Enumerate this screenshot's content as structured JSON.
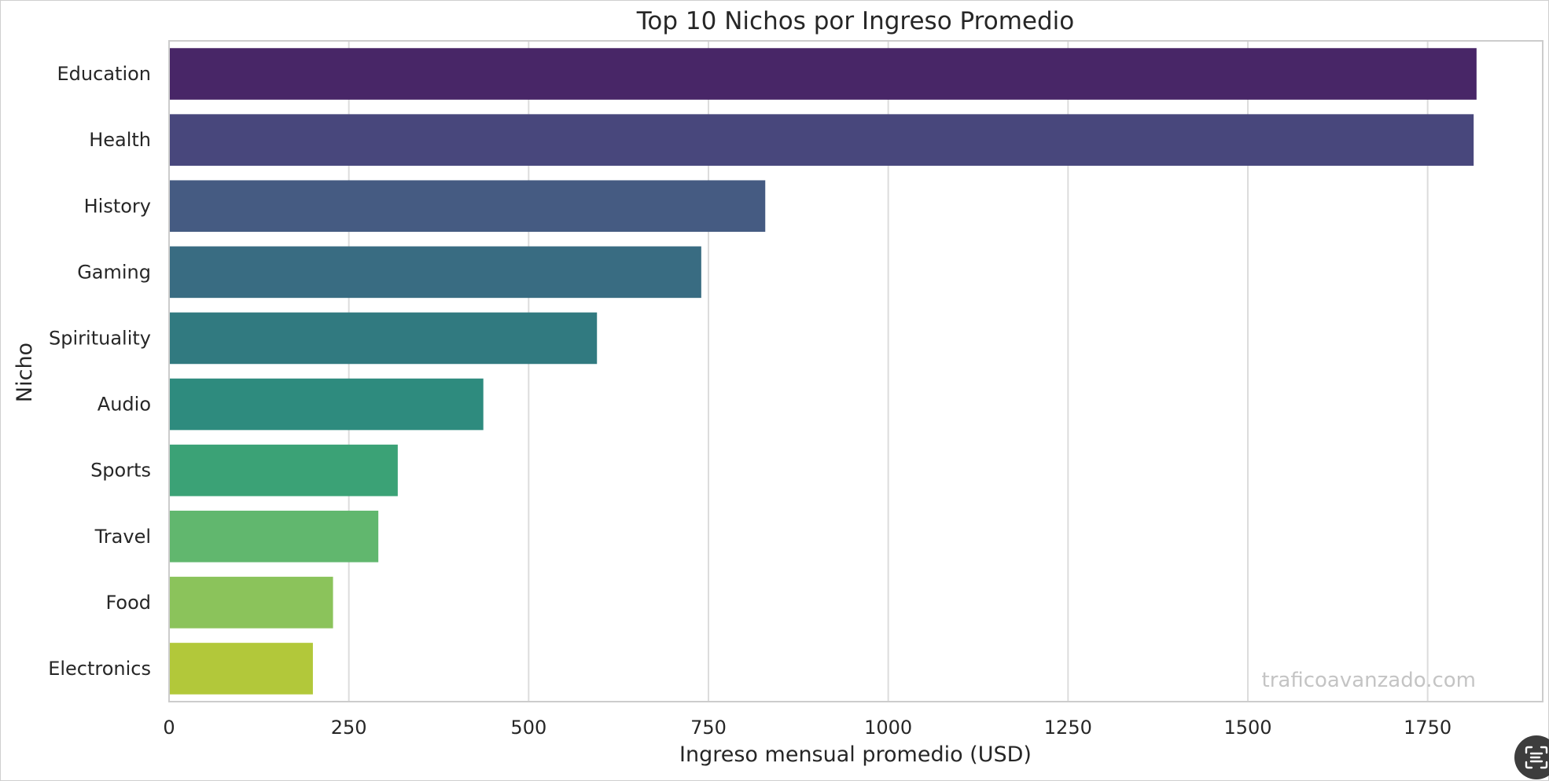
{
  "chart_data": {
    "type": "bar",
    "orientation": "horizontal",
    "title": "Top 10 Nichos por Ingreso Promedio",
    "xlabel": "Ingreso mensual promedio (USD)",
    "ylabel": "Nicho",
    "categories": [
      "Education",
      "Health",
      "History",
      "Gaming",
      "Spirituality",
      "Audio",
      "Sports",
      "Travel",
      "Food",
      "Electronics"
    ],
    "values": [
      1818,
      1814,
      829,
      740,
      595,
      437,
      318,
      291,
      228,
      200
    ],
    "colors": [
      "#482667",
      "#48477c",
      "#455b82",
      "#396c82",
      "#317a80",
      "#2e8b7e",
      "#3ba276",
      "#61b76e",
      "#8bc35b",
      "#b2c83a"
    ],
    "xlim": [
      0,
      1910
    ],
    "xticks": [
      0,
      250,
      500,
      750,
      1000,
      1250,
      1500,
      1750
    ],
    "xtick_labels": [
      "0",
      "250",
      "500",
      "750",
      "1000",
      "1250",
      "1500",
      "1750"
    ],
    "grid": "vertical",
    "watermark": "traficoavanzado.com"
  },
  "controls": {
    "scan_icon": "scan-text-icon"
  }
}
